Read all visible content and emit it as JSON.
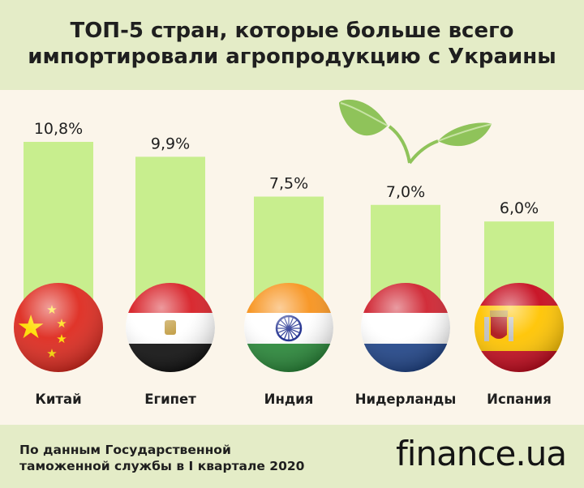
{
  "title": {
    "line1": "ТОП-5 стран, которые больше всего",
    "line2": "импортировали агропродукцию с Украины"
  },
  "chart_data": {
    "type": "bar",
    "categories": [
      "Китай",
      "Египет",
      "Индия",
      "Нидерланды",
      "Испания"
    ],
    "values": [
      10.8,
      9.9,
      7.5,
      7.0,
      6.0
    ],
    "value_labels": [
      "10,8%",
      "9,9%",
      "7,5%",
      "7,0%",
      "6,0%"
    ],
    "unit": "%",
    "ylim": [
      0,
      10.8
    ],
    "grid": false,
    "bar_color": "#c8ee8e"
  },
  "source": {
    "line1": "По данным Государственной",
    "line2": "таможенной службы в I квартале 2020"
  },
  "logo": {
    "name": "finance",
    "dot": ".",
    "tld": "ua"
  },
  "colors": {
    "header_bg": "#e4ecc7",
    "chart_bg": "#fbf5ea",
    "bar": "#c8ee8e",
    "leaf": "#8fc35a"
  },
  "decorations": {
    "leaf_icon": "plant-sprout-icon"
  }
}
